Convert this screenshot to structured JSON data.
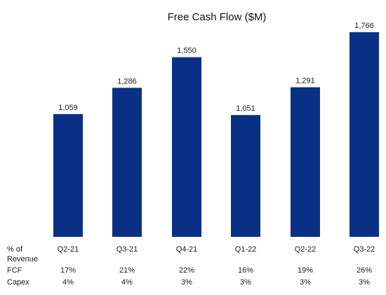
{
  "chart_data": {
    "type": "bar",
    "title": "Free Cash Flow ($M)",
    "categories": [
      "Q2-21",
      "Q3-21",
      "Q4-21",
      "Q1-22",
      "Q2-22",
      "Q3-22"
    ],
    "values": [
      1059,
      1286,
      1550,
      1051,
      1291,
      1766
    ],
    "value_labels": [
      "1,059",
      "1,286",
      "1,550",
      "1,051",
      "1,291",
      "1,766"
    ],
    "ylim": [
      0,
      1850
    ],
    "bar_color": "#0a3086",
    "grid": false,
    "legend": "none",
    "xlabel": "",
    "ylabel": "",
    "table_header": [
      "% of",
      "Revenue"
    ],
    "table_rows": [
      {
        "label": "FCF",
        "values": [
          "17%",
          "21%",
          "22%",
          "16%",
          "19%",
          "26%"
        ]
      },
      {
        "label": "Capex",
        "values": [
          "4%",
          "4%",
          "3%",
          "3%",
          "3%",
          "3%"
        ]
      }
    ]
  }
}
